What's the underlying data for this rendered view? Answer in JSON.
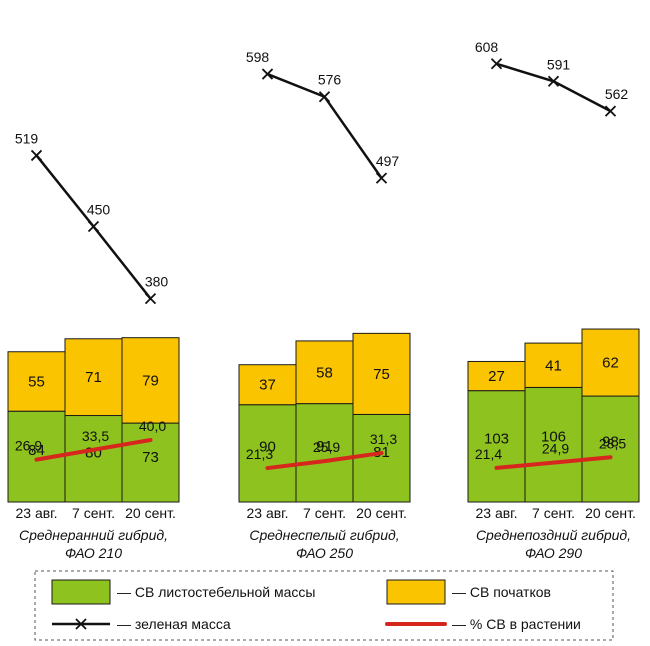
{
  "chart_data": {
    "type": "bar",
    "stacked": true,
    "groups": [
      {
        "title": [
          "Среднеранний гибрид,",
          "ФАО 210"
        ],
        "categories": [
          "23 авг.",
          "7 сент.",
          "20 сент."
        ],
        "stem_dm": [
          84,
          80,
          73
        ],
        "cob_dm": [
          55,
          71,
          79
        ],
        "green_mass": [
          "519",
          "450",
          "380"
        ],
        "dm_percent": [
          "26,9",
          "33,5",
          "40,0"
        ]
      },
      {
        "title": [
          "Среднеспелый гибрид,",
          "ФАО 250"
        ],
        "categories": [
          "23 авг.",
          "7 сент.",
          "20 сент."
        ],
        "stem_dm": [
          90,
          91,
          81
        ],
        "cob_dm": [
          37,
          58,
          75
        ],
        "green_mass": [
          "598",
          "576",
          "497"
        ],
        "dm_percent": [
          "21,3",
          "25,9",
          "31,3"
        ]
      },
      {
        "title": [
          "Среднепоздний гибрид,",
          "ФАО 290"
        ],
        "categories": [
          "23 авг.",
          "7 сент.",
          "20 сент."
        ],
        "stem_dm": [
          103,
          106,
          98
        ],
        "cob_dm": [
          27,
          41,
          62
        ],
        "green_mass": [
          "608",
          "591",
          "562"
        ],
        "dm_percent": [
          "21,4",
          "24,9",
          "28,5"
        ]
      }
    ],
    "legend": {
      "stem": "— СВ листостебельной массы",
      "cob": "— СВ початков",
      "green": "— зеленая масса",
      "pct": "— % СВ в растении"
    },
    "colors": {
      "stem": "#8dc21f",
      "cob": "#fbc400",
      "green_line": "#111111",
      "pct_line": "#d7261e"
    },
    "grid": false
  }
}
